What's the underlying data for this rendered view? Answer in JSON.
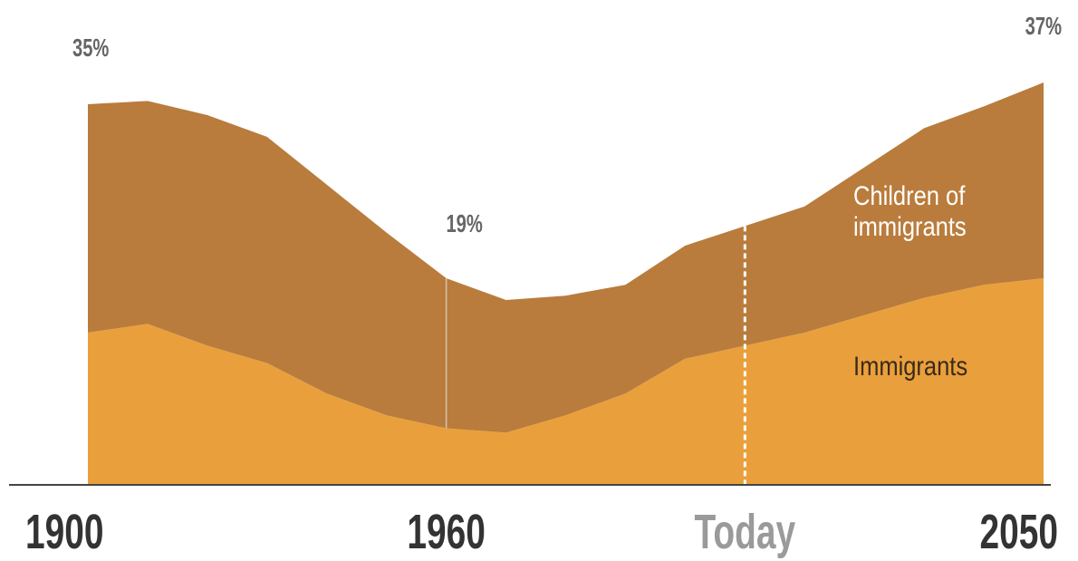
{
  "chart_data": {
    "type": "stacked_area",
    "categories": [
      "1900",
      null,
      null,
      null,
      null,
      null,
      "1960",
      null,
      null,
      null,
      null,
      "Today",
      null,
      null,
      null,
      null,
      "2050"
    ],
    "category_label_colors": [
      "#333333",
      null,
      null,
      null,
      null,
      null,
      "#333333",
      null,
      null,
      null,
      null,
      "#9a9a9a",
      null,
      null,
      null,
      null,
      "#333333"
    ],
    "series": [
      {
        "name": "Immigrants",
        "color": "#e9a03c",
        "label_color": "#3a2a1a",
        "values": [
          14,
          14.8,
          12.8,
          11.2,
          8.4,
          6.4,
          5.2,
          4.8,
          6.4,
          8.4,
          11.6,
          12.8,
          14,
          15.6,
          17.2,
          18.4,
          19
        ]
      },
      {
        "name": "Children of immigrants",
        "color": "#b97c3c",
        "label_color": "#ffffff",
        "values": [
          21,
          20.5,
          21.2,
          20.8,
          19.2,
          16.8,
          13.8,
          12.2,
          11,
          10,
          10.4,
          11,
          11.6,
          13.6,
          15.6,
          16.4,
          18
        ]
      }
    ],
    "total_labels": [
      "35%",
      null,
      null,
      null,
      null,
      null,
      "19%",
      null,
      null,
      null,
      null,
      null,
      null,
      null,
      null,
      null,
      "37%"
    ],
    "ylim": [
      0,
      38
    ]
  }
}
